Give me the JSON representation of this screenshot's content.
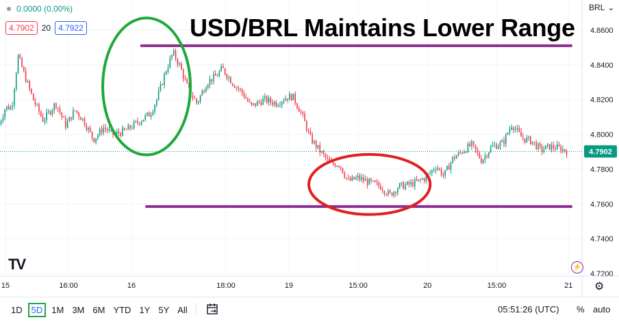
{
  "headline": "USD/BRL Maintains Lower Range",
  "symbol": "BRL",
  "status": {
    "change": "0.0000 (0.00%)"
  },
  "quotes": {
    "bid": "4.7902",
    "spread": "20",
    "ask": "4.7922"
  },
  "colors": {
    "up": "#089981",
    "down": "#f23645",
    "range_line": "#8e2d8e",
    "green_circle": "#1fa83c",
    "red_circle": "#e02020",
    "price_label": "#089981"
  },
  "chart_data": {
    "type": "candlestick",
    "title": "USD/BRL Maintains Lower Range",
    "xlabel": "",
    "ylabel": "",
    "ylim": [
      4.72,
      4.87
    ],
    "x_ticks": [
      {
        "label": "15",
        "x": 0.0
      },
      {
        "label": "16:00",
        "x": 0.5
      },
      {
        "label": "16",
        "x": 1.0
      },
      {
        "label": "18:00",
        "x": 1.75
      },
      {
        "label": "19",
        "x": 2.25
      },
      {
        "label": "15:00",
        "x": 2.8
      },
      {
        "label": "20",
        "x": 3.35
      },
      {
        "label": "15:00",
        "x": 3.9
      },
      {
        "label": "21",
        "x": 4.47
      }
    ],
    "y_ticks": [
      "4.8600",
      "4.8400",
      "4.8200",
      "4.8000",
      "4.7800",
      "4.7600",
      "4.7400",
      "4.7200"
    ],
    "y_tick_values": [
      4.86,
      4.84,
      4.82,
      4.8,
      4.78,
      4.76,
      4.74,
      4.72
    ],
    "xlim": [
      0.0,
      4.55
    ],
    "last_price": {
      "value": 4.7902,
      "label": "4.7902"
    },
    "resistance": 4.851,
    "support": 4.7585,
    "price_path": [
      [
        -0.05,
        4.806
      ],
      [
        0.0,
        4.8155
      ],
      [
        0.05,
        4.8155
      ],
      [
        0.1,
        4.845
      ],
      [
        0.18,
        4.828
      ],
      [
        0.22,
        4.82
      ],
      [
        0.3,
        4.808
      ],
      [
        0.4,
        4.818
      ],
      [
        0.48,
        4.805
      ],
      [
        0.55,
        4.814
      ],
      [
        0.62,
        4.808
      ],
      [
        0.7,
        4.797
      ],
      [
        0.78,
        4.804
      ],
      [
        0.86,
        4.8
      ],
      [
        0.95,
        4.802
      ],
      [
        1.05,
        4.807
      ],
      [
        1.15,
        4.812
      ],
      [
        1.2,
        4.82
      ],
      [
        1.28,
        4.838
      ],
      [
        1.33,
        4.847
      ],
      [
        1.38,
        4.84
      ],
      [
        1.45,
        4.826
      ],
      [
        1.52,
        4.818
      ],
      [
        1.6,
        4.83
      ],
      [
        1.68,
        4.834
      ],
      [
        1.72,
        4.838
      ],
      [
        1.8,
        4.83
      ],
      [
        1.88,
        4.824
      ],
      [
        1.95,
        4.816
      ],
      [
        2.05,
        4.82
      ],
      [
        2.15,
        4.818
      ],
      [
        2.22,
        4.821
      ],
      [
        2.28,
        4.822
      ],
      [
        2.35,
        4.812
      ],
      [
        2.42,
        4.798
      ],
      [
        2.5,
        4.79
      ],
      [
        2.58,
        4.783
      ],
      [
        2.65,
        4.783
      ],
      [
        2.72,
        4.773
      ],
      [
        2.8,
        4.775
      ],
      [
        2.9,
        4.772
      ],
      [
        2.98,
        4.77
      ],
      [
        3.05,
        4.765
      ],
      [
        3.12,
        4.77
      ],
      [
        3.2,
        4.771
      ],
      [
        3.28,
        4.773
      ],
      [
        3.35,
        4.776
      ],
      [
        3.42,
        4.782
      ],
      [
        3.48,
        4.776
      ],
      [
        3.55,
        4.786
      ],
      [
        3.62,
        4.79
      ],
      [
        3.7,
        4.794
      ],
      [
        3.78,
        4.785
      ],
      [
        3.86,
        4.793
      ],
      [
        3.95,
        4.795
      ],
      [
        4.02,
        4.806
      ],
      [
        4.1,
        4.798
      ],
      [
        4.18,
        4.796
      ],
      [
        4.25,
        4.791
      ],
      [
        4.32,
        4.793
      ],
      [
        4.4,
        4.792
      ],
      [
        4.47,
        4.79
      ],
      [
        4.5,
        4.789
      ]
    ],
    "annotations": {
      "resistance_line": {
        "x_start": 1.08,
        "x_end": 4.49,
        "y": 4.851
      },
      "support_line": {
        "x_start": 1.12,
        "x_end": 4.49,
        "y": 4.7585
      },
      "green_ellipse": {
        "x_center": 1.12,
        "y_center": 4.8276,
        "x_radius": 0.348,
        "y_radius": 0.0394
      },
      "red_ellipse": {
        "x_center": 2.89,
        "y_center": 4.7712,
        "x_radius": 0.482,
        "y_radius": 0.0173
      }
    }
  },
  "bottom_bar": {
    "ranges": [
      "1D",
      "5D",
      "1M",
      "3M",
      "6M",
      "YTD",
      "1Y",
      "5Y",
      "All"
    ],
    "active_range": "5D",
    "clock": "05:51:26 (UTC)",
    "percent": "%",
    "auto": "auto"
  },
  "icons": {
    "logo": "tradingview-logo-icon",
    "calendar": "calendar-range-icon",
    "settings": "gear-icon",
    "bolt": "lightning-icon"
  },
  "logo_text": "TV"
}
